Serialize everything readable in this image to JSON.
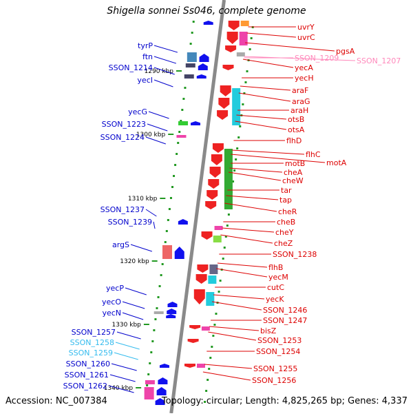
{
  "title": "Shigella sonnei Ss046, complete genome",
  "accession_text": "Accession: NC_007384",
  "summary_text": "Topology: circular; Length: 4,825,265 bp; Genes: 4,337",
  "colors": {
    "backbone": "#8a8a8a",
    "left_label": "#0000cc",
    "right_label": "#dd0000",
    "pink_label": "#ff88bb",
    "cyan_label": "#33bbee",
    "tick": "#229922"
  },
  "scale_labels": [
    "1290 kbp",
    "1300 kbp",
    "1310 kbp",
    "1320 kbp",
    "1330 kbp",
    "1340 kbp"
  ],
  "left_genes": [
    {
      "name": "tyrP",
      "color": "blue"
    },
    {
      "name": "ftn",
      "color": "blue"
    },
    {
      "name": "SSON_1214",
      "color": "blue"
    },
    {
      "name": "yecI",
      "color": "blue"
    },
    {
      "name": "yecG",
      "color": "blue"
    },
    {
      "name": "SSON_1223",
      "color": "blue"
    },
    {
      "name": "SSON_1224",
      "color": "blue"
    },
    {
      "name": "SSON_1237",
      "color": "blue"
    },
    {
      "name": "SSON_1239",
      "color": "blue"
    },
    {
      "name": "argS",
      "color": "blue"
    },
    {
      "name": "yecP",
      "color": "blue"
    },
    {
      "name": "yecO",
      "color": "blue"
    },
    {
      "name": "yecN",
      "color": "blue"
    },
    {
      "name": "SSON_1257",
      "color": "blue"
    },
    {
      "name": "SSON_1258",
      "color": "cyan"
    },
    {
      "name": "SSON_1259",
      "color": "cyan"
    },
    {
      "name": "SSON_1260",
      "color": "blue"
    },
    {
      "name": "SSON_1261",
      "color": "blue"
    },
    {
      "name": "SSON_1262",
      "color": "blue"
    }
  ],
  "right_genes": [
    {
      "name": "uvrY",
      "color": "red"
    },
    {
      "name": "uvrC",
      "color": "red"
    },
    {
      "name": "pgsA",
      "color": "red"
    },
    {
      "name": "SSON_1209",
      "color": "pink"
    },
    {
      "name": "SSON_1207",
      "color": "pink"
    },
    {
      "name": "yecA",
      "color": "red"
    },
    {
      "name": "yecH",
      "color": "red"
    },
    {
      "name": "araF",
      "color": "red"
    },
    {
      "name": "araG",
      "color": "red"
    },
    {
      "name": "araH",
      "color": "red"
    },
    {
      "name": "otsB",
      "color": "red"
    },
    {
      "name": "otsA",
      "color": "red"
    },
    {
      "name": "flhD",
      "color": "red"
    },
    {
      "name": "flhC",
      "color": "red"
    },
    {
      "name": "motA",
      "color": "red"
    },
    {
      "name": "motB",
      "color": "red"
    },
    {
      "name": "cheA",
      "color": "red"
    },
    {
      "name": "cheW",
      "color": "red"
    },
    {
      "name": "tar",
      "color": "red"
    },
    {
      "name": "tap",
      "color": "red"
    },
    {
      "name": "cheR",
      "color": "red"
    },
    {
      "name": "cheB",
      "color": "red"
    },
    {
      "name": "cheY",
      "color": "red"
    },
    {
      "name": "cheZ",
      "color": "red"
    },
    {
      "name": "SSON_1238",
      "color": "red"
    },
    {
      "name": "flhB",
      "color": "red"
    },
    {
      "name": "yecM",
      "color": "red"
    },
    {
      "name": "cutC",
      "color": "red"
    },
    {
      "name": "yecK",
      "color": "red"
    },
    {
      "name": "SSON_1246",
      "color": "red"
    },
    {
      "name": "SSON_1247",
      "color": "red"
    },
    {
      "name": "bisZ",
      "color": "red"
    },
    {
      "name": "SSON_1253",
      "color": "red"
    },
    {
      "name": "SSON_1254",
      "color": "red"
    },
    {
      "name": "SSON_1255",
      "color": "red"
    },
    {
      "name": "SSON_1256",
      "color": "red"
    }
  ]
}
